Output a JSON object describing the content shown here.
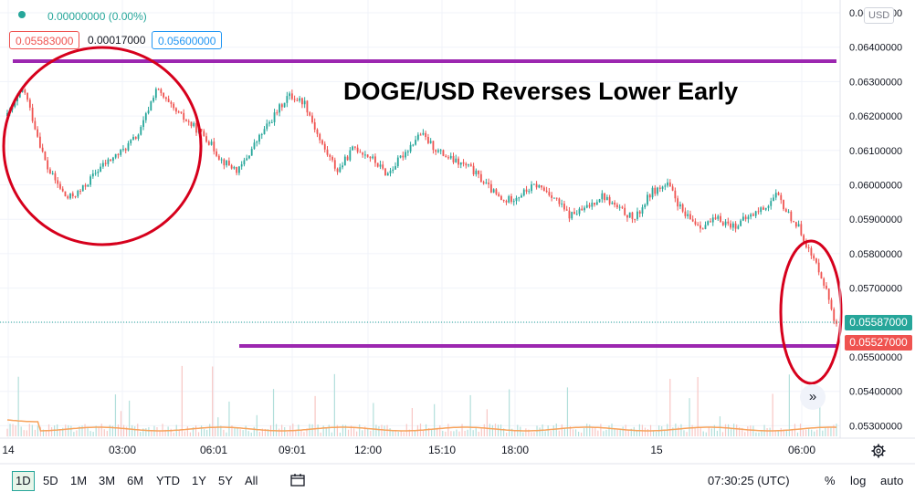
{
  "header": {
    "change_text": "0.00000000 (0.00%)",
    "bid": "0.05583000",
    "spread": "0.00017000",
    "ask": "0.05600000"
  },
  "currency_badge": "USD",
  "title": "DOGE/USD Reverses Lower Early",
  "price_tags": {
    "last": "0.05587000",
    "level": "0.05527000"
  },
  "timeframes": [
    "1D",
    "5D",
    "1M",
    "3M",
    "6M",
    "YTD",
    "1Y",
    "5Y",
    "All"
  ],
  "active_timeframe": "1D",
  "footer": {
    "time": "07:30:25 (UTC)",
    "percent": "%",
    "log": "log",
    "auto": "auto"
  },
  "colors": {
    "up": "#26a69a",
    "down": "#ef5350",
    "resistance": "#9c27b0",
    "annotation": "#d6001c",
    "volume_ma": "#f7a35c"
  },
  "chart_data": {
    "type": "candlestick",
    "title": "DOGE/USD Reverses Lower Early",
    "x_tick_labels": [
      "14",
      "03:00",
      "06:01",
      "09:01",
      "12:00",
      "15:10",
      "18:00",
      "15",
      "06:00"
    ],
    "y_tick_labels": [
      "0.06500000",
      "0.06400000",
      "0.06300000",
      "0.06200000",
      "0.06100000",
      "0.06000000",
      "0.05900000",
      "0.05800000",
      "0.05700000",
      "0.05600000",
      "0.05500000",
      "0.05400000",
      "0.05300000"
    ],
    "ylim": [
      0.0525,
      0.0655
    ],
    "price_path": [
      {
        "t": 0,
        "p": 0.062
      },
      {
        "t": 0.5,
        "p": 0.0628
      },
      {
        "t": 1.2,
        "p": 0.0605
      },
      {
        "t": 1.8,
        "p": 0.0596
      },
      {
        "t": 2.2,
        "p": 0.0598
      },
      {
        "t": 2.8,
        "p": 0.0605
      },
      {
        "t": 3.5,
        "p": 0.061
      },
      {
        "t": 4.0,
        "p": 0.0615
      },
      {
        "t": 4.5,
        "p": 0.0628
      },
      {
        "t": 5.0,
        "p": 0.0622
      },
      {
        "t": 5.5,
        "p": 0.0618
      },
      {
        "t": 6.0,
        "p": 0.0614
      },
      {
        "t": 6.5,
        "p": 0.0607
      },
      {
        "t": 7.0,
        "p": 0.0604
      },
      {
        "t": 7.5,
        "p": 0.0612
      },
      {
        "t": 8.0,
        "p": 0.0619
      },
      {
        "t": 8.5,
        "p": 0.0626
      },
      {
        "t": 9.0,
        "p": 0.0624
      },
      {
        "t": 9.5,
        "p": 0.0612
      },
      {
        "t": 10.0,
        "p": 0.0604
      },
      {
        "t": 10.5,
        "p": 0.0611
      },
      {
        "t": 11.0,
        "p": 0.0608
      },
      {
        "t": 11.5,
        "p": 0.0603
      },
      {
        "t": 12.0,
        "p": 0.0609
      },
      {
        "t": 12.5,
        "p": 0.0615
      },
      {
        "t": 13.0,
        "p": 0.061
      },
      {
        "t": 13.5,
        "p": 0.0607
      },
      {
        "t": 14.0,
        "p": 0.0605
      },
      {
        "t": 14.5,
        "p": 0.06
      },
      {
        "t": 15.0,
        "p": 0.0595
      },
      {
        "t": 15.5,
        "p": 0.0597
      },
      {
        "t": 16.0,
        "p": 0.06
      },
      {
        "t": 16.5,
        "p": 0.0597
      },
      {
        "t": 17.0,
        "p": 0.0591
      },
      {
        "t": 17.5,
        "p": 0.0593
      },
      {
        "t": 18.0,
        "p": 0.0597
      },
      {
        "t": 18.5,
        "p": 0.0593
      },
      {
        "t": 19.0,
        "p": 0.059
      },
      {
        "t": 19.5,
        "p": 0.0598
      },
      {
        "t": 20.0,
        "p": 0.06
      },
      {
        "t": 20.5,
        "p": 0.0591
      },
      {
        "t": 21.0,
        "p": 0.0588
      },
      {
        "t": 21.5,
        "p": 0.059
      },
      {
        "t": 22.0,
        "p": 0.0588
      },
      {
        "t": 22.5,
        "p": 0.0591
      },
      {
        "t": 23.0,
        "p": 0.0594
      },
      {
        "t": 23.3,
        "p": 0.0597
      },
      {
        "t": 23.6,
        "p": 0.0592
      },
      {
        "t": 24.0,
        "p": 0.0587
      },
      {
        "t": 24.3,
        "p": 0.058
      },
      {
        "t": 24.6,
        "p": 0.0575
      },
      {
        "t": 24.9,
        "p": 0.0566
      },
      {
        "t": 25.1,
        "p": 0.05587
      }
    ],
    "horizontal_levels": [
      0.06355,
      0.05527
    ],
    "last_price": 0.05587
  }
}
